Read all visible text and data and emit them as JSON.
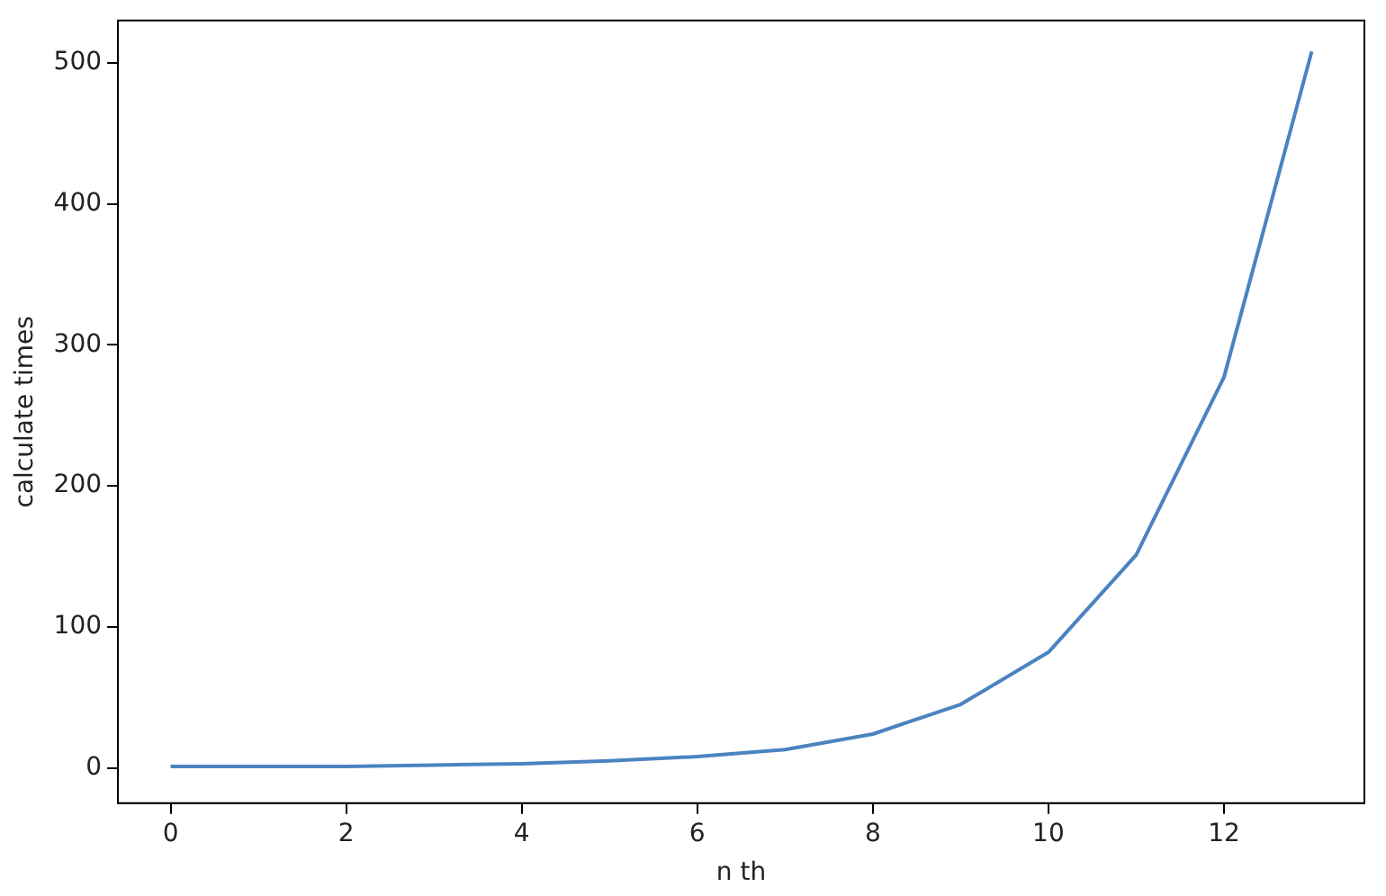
{
  "chart_data": {
    "type": "line",
    "xlabel": "n th",
    "ylabel": "calculate times",
    "x": [
      0,
      1,
      2,
      3,
      4,
      5,
      6,
      7,
      8,
      9,
      10,
      11,
      12,
      13
    ],
    "series": [
      {
        "color": "#4b83c0",
        "values": [
          1,
          1,
          1,
          2,
          3,
          5,
          8,
          13,
          24,
          45,
          82,
          151,
          277,
          508
        ]
      }
    ],
    "xlim": [
      -0.6,
      13.6
    ],
    "xticks": [
      0,
      2,
      4,
      6,
      8,
      10,
      12
    ],
    "ylim": [
      -25,
      530
    ],
    "yticks": [
      0,
      100,
      200,
      300,
      400,
      500
    ],
    "grid": false,
    "legend": false,
    "marker": "none",
    "line_style": "solid"
  }
}
